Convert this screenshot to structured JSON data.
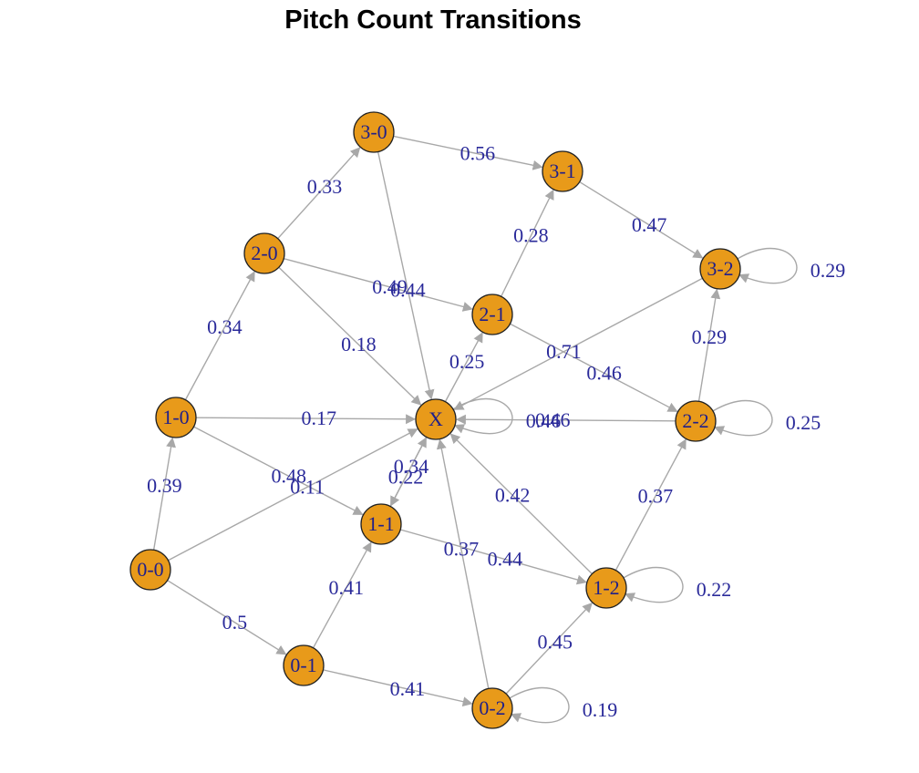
{
  "title": "Pitch Count Transitions",
  "colors": {
    "node_fill": "#e89a1a",
    "edge": "#a8a8a8",
    "label": "#2a2a9a"
  },
  "nodes": [
    {
      "id": "0-0",
      "label": "0-0"
    },
    {
      "id": "1-0",
      "label": "1-0"
    },
    {
      "id": "2-0",
      "label": "2-0"
    },
    {
      "id": "3-0",
      "label": "3-0"
    },
    {
      "id": "0-1",
      "label": "0-1"
    },
    {
      "id": "1-1",
      "label": "1-1"
    },
    {
      "id": "2-1",
      "label": "2-1"
    },
    {
      "id": "3-1",
      "label": "3-1"
    },
    {
      "id": "0-2",
      "label": "0-2"
    },
    {
      "id": "1-2",
      "label": "1-2"
    },
    {
      "id": "2-2",
      "label": "2-2"
    },
    {
      "id": "3-2",
      "label": "3-2"
    },
    {
      "id": "X",
      "label": "X"
    }
  ],
  "edges": [
    {
      "from": "0-0",
      "to": "1-0",
      "label": "0.39"
    },
    {
      "from": "0-0",
      "to": "0-1",
      "label": "0.5"
    },
    {
      "from": "0-0",
      "to": "X",
      "label": "0.11"
    },
    {
      "from": "1-0",
      "to": "2-0",
      "label": "0.34"
    },
    {
      "from": "1-0",
      "to": "X",
      "label": "0.17"
    },
    {
      "from": "1-0",
      "to": "1-1",
      "label": "0.48"
    },
    {
      "from": "2-0",
      "to": "3-0",
      "label": "0.33"
    },
    {
      "from": "2-0",
      "to": "2-1",
      "label": "0.49"
    },
    {
      "from": "2-0",
      "to": "X",
      "label": "0.18"
    },
    {
      "from": "3-0",
      "to": "3-1",
      "label": "0.56"
    },
    {
      "from": "3-0",
      "to": "X",
      "label": "0.44"
    },
    {
      "from": "3-1",
      "to": "3-2",
      "label": "0.47"
    },
    {
      "from": "2-1",
      "to": "3-1",
      "label": "0.28"
    },
    {
      "from": "2-1",
      "to": "2-2",
      "label": "0.46"
    },
    {
      "from": "X",
      "to": "2-1",
      "label": "0.25"
    },
    {
      "from": "3-2",
      "to": "X",
      "label": "0.71"
    },
    {
      "from": "2-2",
      "to": "3-2",
      "label": "0.29"
    },
    {
      "from": "2-2",
      "to": "X",
      "label": "0.46"
    },
    {
      "from": "1-1",
      "to": "X",
      "label": "0.34"
    },
    {
      "from": "X",
      "to": "1-1",
      "label": "0.22"
    },
    {
      "from": "1-1",
      "to": "1-2",
      "label": "0.44"
    },
    {
      "from": "1-2",
      "to": "X",
      "label": "0.42"
    },
    {
      "from": "1-2",
      "to": "2-2",
      "label": "0.37"
    },
    {
      "from": "0-2",
      "to": "X",
      "label": "0.37"
    },
    {
      "from": "0-2",
      "to": "1-2",
      "label": "0.45"
    },
    {
      "from": "0-1",
      "to": "0-2",
      "label": "0.41"
    },
    {
      "from": "0-1",
      "to": "1-1",
      "label": "0.41"
    }
  ],
  "self_loops": [
    {
      "node": "3-2",
      "label": "0.29"
    },
    {
      "node": "2-2",
      "label": "0.25"
    },
    {
      "node": "1-2",
      "label": "0.22"
    },
    {
      "node": "0-2",
      "label": "0.19"
    },
    {
      "node": "X",
      "label": "0.46"
    }
  ]
}
